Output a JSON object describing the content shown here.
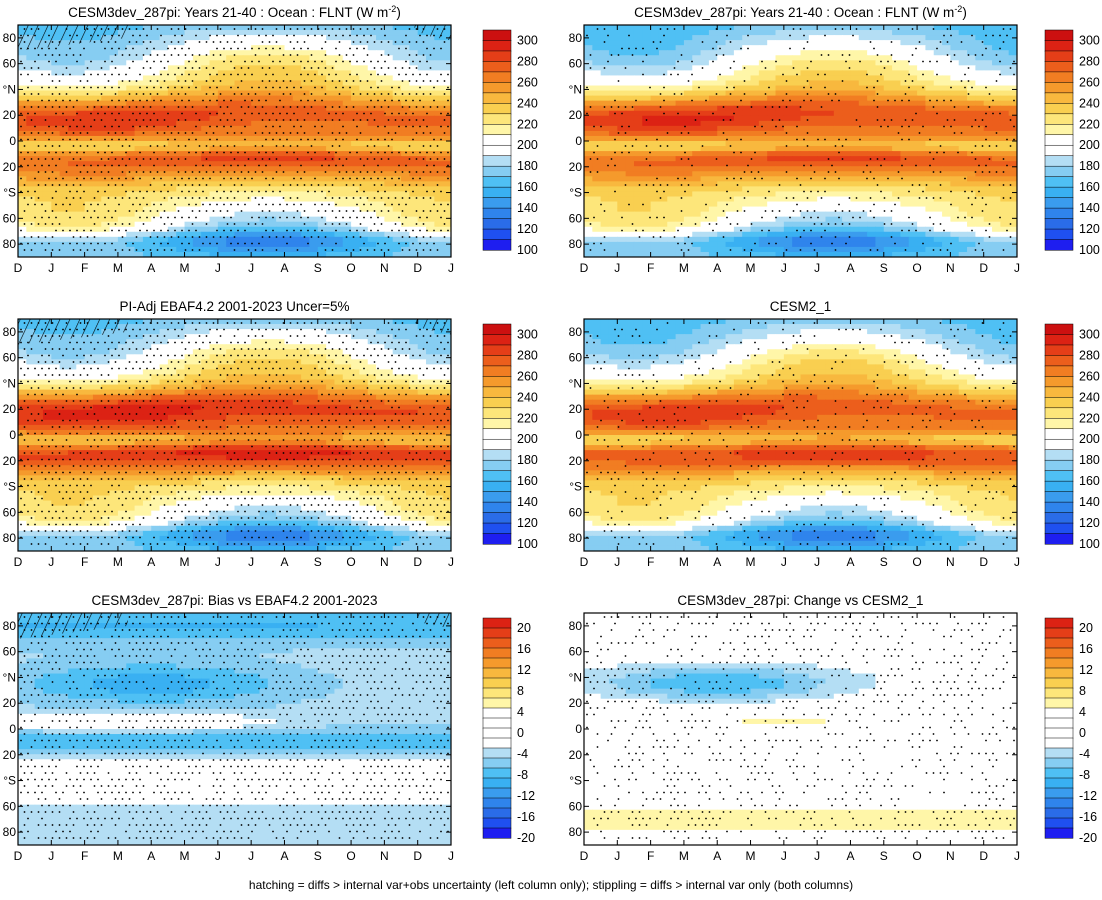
{
  "footnote": "hatching = diffs > internal var+obs uncertainty (left column only); stippling = diffs > internal var only (both columns)",
  "chart_data": [
    {
      "type": "heatmap",
      "panel": "top-left",
      "title": "CESM3dev_287pi: Years 21-40 : Ocean : FLNT (W m",
      "title_sup": "-2",
      "title_tail": ")",
      "field": "abs_a",
      "stipple": "wide",
      "hatching": true,
      "colorbar": "absolute"
    },
    {
      "type": "heatmap",
      "panel": "top-right",
      "title": "CESM3dev_287pi: Years 21-40 : Ocean : FLNT (W m",
      "title_sup": "-2",
      "title_tail": ")",
      "field": "abs_a2",
      "stipple": "sparse",
      "hatching": false,
      "colorbar": "absolute"
    },
    {
      "type": "heatmap",
      "panel": "middle-left",
      "title": "PI-Adj EBAF4.2 2001-2023 Uncer=5%",
      "title_sup": "",
      "title_tail": "",
      "field": "abs_b",
      "stipple": "wide",
      "hatching": true,
      "colorbar": "absolute"
    },
    {
      "type": "heatmap",
      "panel": "middle-right",
      "title": "CESM2_1",
      "title_sup": "",
      "title_tail": "",
      "field": "abs_c",
      "stipple": "sparse",
      "hatching": false,
      "colorbar": "absolute"
    },
    {
      "type": "heatmap",
      "panel": "bottom-left",
      "title": "CESM3dev_287pi: Bias vs EBAF4.2 2001-2023",
      "title_sup": "",
      "title_tail": "",
      "field": "bias",
      "stipple": "wide",
      "hatching": true,
      "colorbar": "diff"
    },
    {
      "type": "heatmap",
      "panel": "bottom-right",
      "title": "CESM3dev_287pi: Change vs CESM2_1",
      "title_sup": "",
      "title_tail": "",
      "field": "change",
      "stipple": "medium",
      "hatching": false,
      "colorbar": "diff"
    }
  ],
  "axes": {
    "x_ticks": [
      "D",
      "J",
      "F",
      "M",
      "A",
      "M",
      "J",
      "J",
      "A",
      "S",
      "O",
      "N",
      "D",
      "J"
    ],
    "x_range": [
      0,
      13
    ],
    "y_range": [
      -90,
      90
    ],
    "y_ticks": [
      {
        "lat": 80,
        "label": "80"
      },
      {
        "lat": 60,
        "label": "60"
      },
      {
        "lat": 40,
        "label": "°N"
      },
      {
        "lat": 20,
        "label": "20"
      },
      {
        "lat": 0,
        "label": "0"
      },
      {
        "lat": -20,
        "label": "20"
      },
      {
        "lat": -40,
        "label": "°S"
      },
      {
        "lat": -60,
        "label": "60"
      },
      {
        "lat": -80,
        "label": "80"
      }
    ]
  },
  "colorbars": {
    "absolute": {
      "labels": [
        "300",
        "280",
        "260",
        "240",
        "220",
        "200",
        "180",
        "160",
        "140",
        "120",
        "100"
      ],
      "levels": [
        100,
        110,
        120,
        130,
        140,
        150,
        160,
        170,
        180,
        190,
        200,
        210,
        220,
        230,
        240,
        250,
        260,
        270,
        280,
        290,
        300,
        310
      ],
      "colors": [
        "#1e1ef0",
        "#1f50f0",
        "#2a6ce8",
        "#2f84ec",
        "#3a9cee",
        "#39b0f2",
        "#4fc0f4",
        "#86cdf2",
        "#b4def4",
        "#ffffff",
        "#ffffff",
        "#fff6a8",
        "#fde67a",
        "#f9cf50",
        "#f8b83e",
        "#f59a2c",
        "#f17d22",
        "#ec5e1c",
        "#e53e18",
        "#dc2214",
        "#cc1010"
      ]
    },
    "diff": {
      "labels": [
        "20",
        "16",
        "12",
        "8",
        "4",
        "0",
        "-4",
        "-8",
        "-12",
        "-16",
        "-20"
      ],
      "levels": [
        -22,
        -20,
        -18,
        -16,
        -14,
        -12,
        -10,
        -8,
        -6,
        -4,
        -2,
        0,
        2,
        4,
        6,
        8,
        10,
        12,
        14,
        16,
        18,
        20,
        22
      ],
      "colors": [
        "#1e1ef0",
        "#1f50f0",
        "#2a6ce8",
        "#2f84ec",
        "#3a9cee",
        "#39b0f2",
        "#4fc0f4",
        "#86cdf2",
        "#b4def4",
        "#ffffff",
        "#ffffff",
        "#ffffff",
        "#ffffff",
        "#fff6a8",
        "#fde67a",
        "#f9cf50",
        "#f8b83e",
        "#f59a2c",
        "#f17d22",
        "#ec5e1c",
        "#e53e18",
        "#dc2214"
      ]
    }
  }
}
